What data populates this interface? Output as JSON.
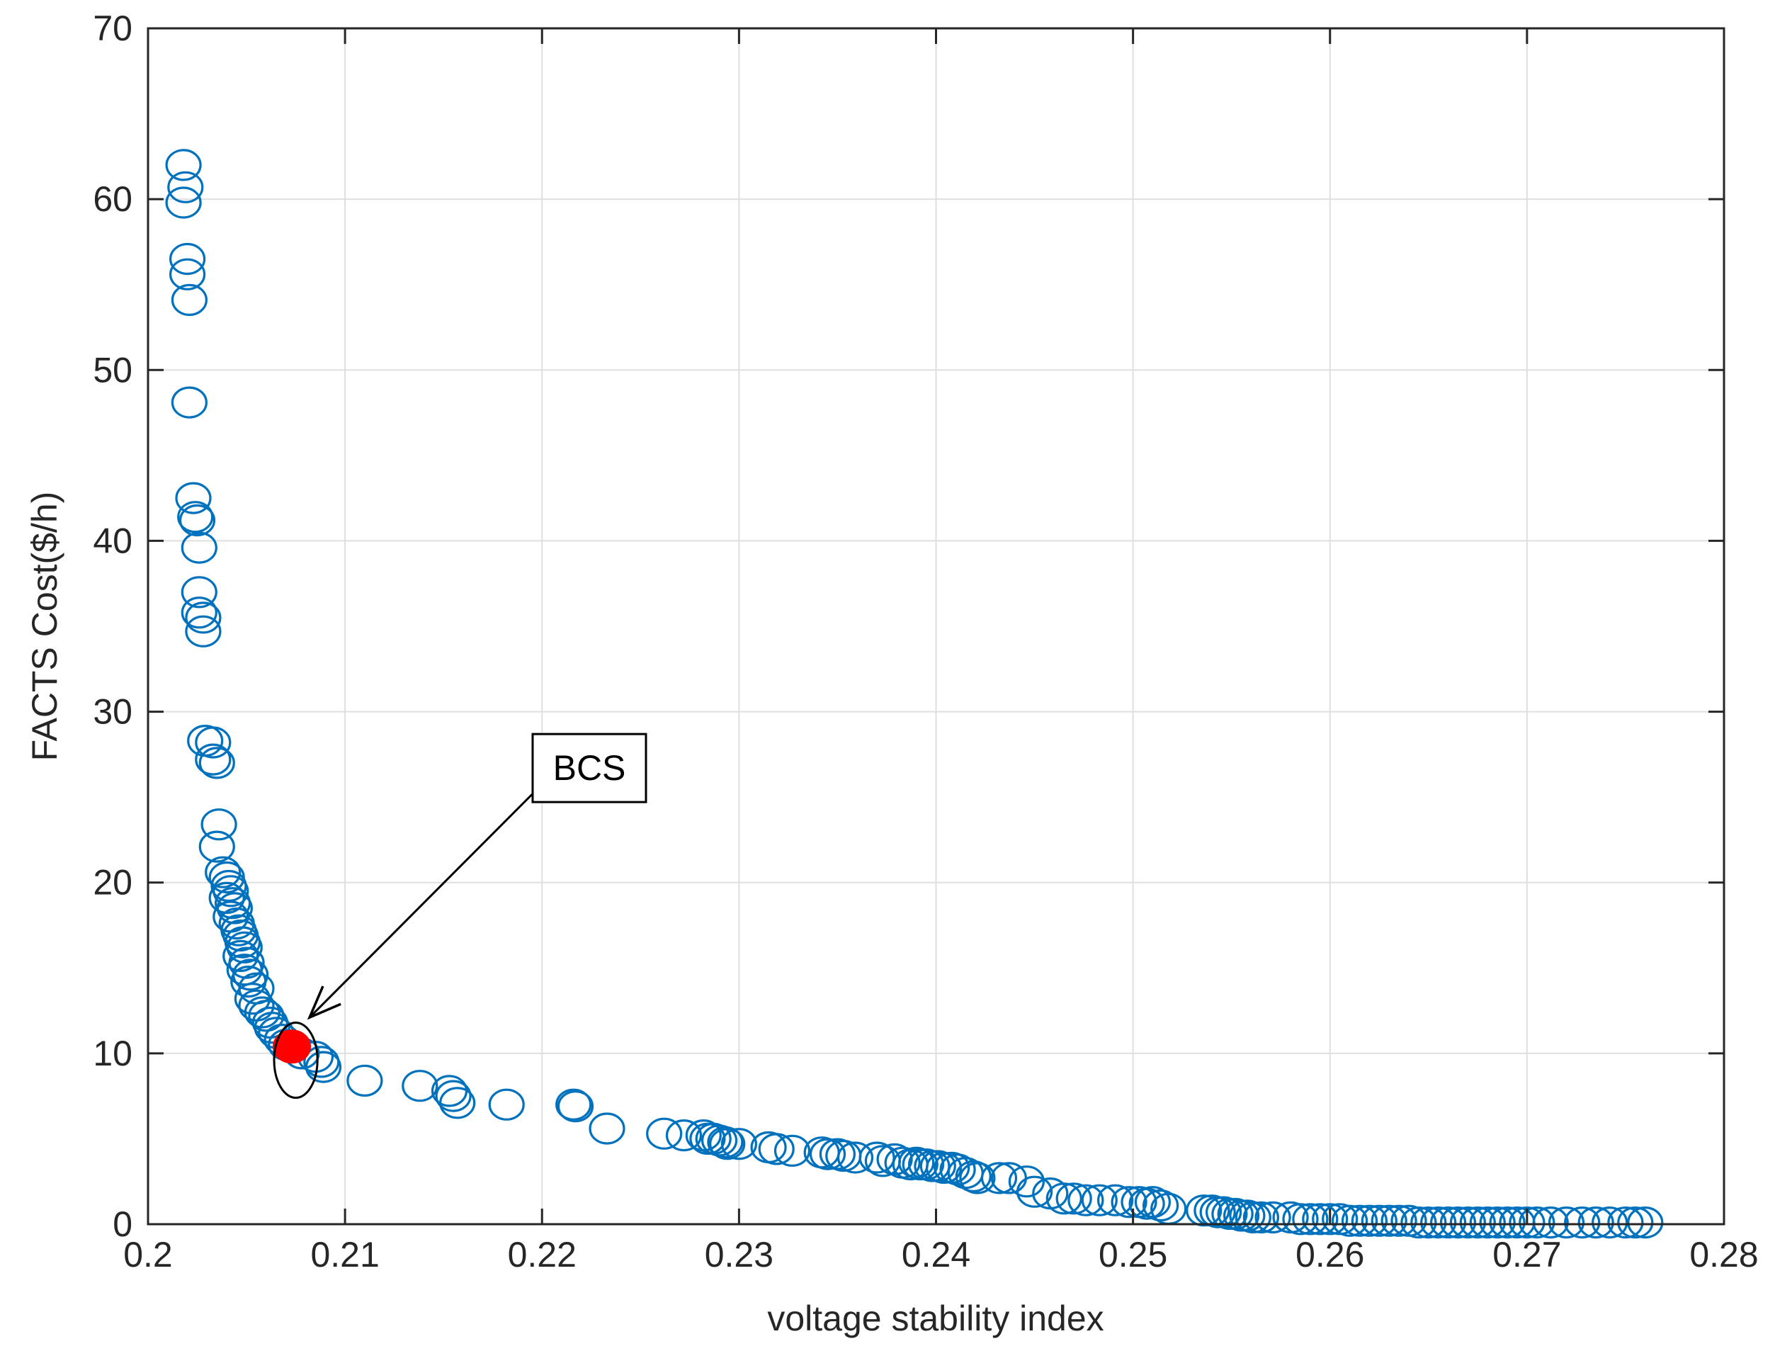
{
  "chart_data": {
    "type": "scatter",
    "title": "",
    "xlabel": "voltage stability index",
    "ylabel": "FACTS Cost($/h)",
    "xlim": [
      0.2,
      0.28
    ],
    "ylim": [
      0,
      70
    ],
    "x_ticks": [
      0.2,
      0.21,
      0.22,
      0.23,
      0.24,
      0.25,
      0.26,
      0.27,
      0.28
    ],
    "x_tick_labels": [
      "0.2",
      "0.21",
      "0.22",
      "0.23",
      "0.24",
      "0.25",
      "0.26",
      "0.27",
      "0.28"
    ],
    "y_ticks": [
      0,
      10,
      20,
      30,
      40,
      50,
      60,
      70
    ],
    "y_tick_labels": [
      "0",
      "10",
      "20",
      "30",
      "40",
      "50",
      "60",
      "70"
    ],
    "grid": true,
    "colors": {
      "marker": "#0072BD",
      "highlight": "#ff0000",
      "axis": "#262626",
      "grid": "#dfdfdf"
    },
    "series": [
      {
        "marker": "open-circle",
        "points": [
          [
            0.2018,
            62.0
          ],
          [
            0.2019,
            60.7
          ],
          [
            0.2018,
            59.8
          ],
          [
            0.202,
            56.5
          ],
          [
            0.202,
            55.6
          ],
          [
            0.2021,
            54.1
          ],
          [
            0.2021,
            48.1
          ],
          [
            0.2023,
            42.5
          ],
          [
            0.2024,
            41.4
          ],
          [
            0.2025,
            41.2
          ],
          [
            0.2026,
            39.6
          ],
          [
            0.2026,
            37.0
          ],
          [
            0.2026,
            35.8
          ],
          [
            0.2028,
            35.5
          ],
          [
            0.2028,
            34.7
          ],
          [
            0.2029,
            28.3
          ],
          [
            0.2033,
            28.2
          ],
          [
            0.2033,
            27.2
          ],
          [
            0.2035,
            27.0
          ],
          [
            0.2036,
            23.4
          ],
          [
            0.2035,
            22.1
          ],
          [
            0.2038,
            20.6
          ],
          [
            0.204,
            20.3
          ],
          [
            0.2041,
            19.8
          ],
          [
            0.2042,
            19.5
          ],
          [
            0.204,
            19.1
          ],
          [
            0.2043,
            18.8
          ],
          [
            0.2044,
            18.5
          ],
          [
            0.2042,
            18.0
          ],
          [
            0.2045,
            17.6
          ],
          [
            0.2046,
            17.2
          ],
          [
            0.2047,
            16.9
          ],
          [
            0.2048,
            16.5
          ],
          [
            0.2049,
            16.2
          ],
          [
            0.2047,
            15.7
          ],
          [
            0.205,
            15.3
          ],
          [
            0.2049,
            14.9
          ],
          [
            0.2052,
            14.6
          ],
          [
            0.2051,
            14.2
          ],
          [
            0.2055,
            13.8
          ],
          [
            0.2053,
            13.2
          ],
          [
            0.2055,
            12.8
          ],
          [
            0.2058,
            12.4
          ],
          [
            0.206,
            12.2
          ],
          [
            0.2062,
            11.8
          ],
          [
            0.2063,
            11.5
          ],
          [
            0.2065,
            11.2
          ],
          [
            0.2068,
            10.8
          ],
          [
            0.207,
            10.5
          ],
          [
            0.2078,
            10.0
          ],
          [
            0.2085,
            9.8
          ],
          [
            0.2088,
            9.5
          ],
          [
            0.2089,
            9.2
          ],
          [
            0.211,
            8.4
          ],
          [
            0.2138,
            8.1
          ],
          [
            0.2153,
            7.8
          ],
          [
            0.2155,
            7.5
          ],
          [
            0.2157,
            7.1
          ],
          [
            0.2182,
            7.0
          ],
          [
            0.2216,
            7.0
          ],
          [
            0.2217,
            6.9
          ],
          [
            0.2233,
            5.6
          ],
          [
            0.2262,
            5.3
          ],
          [
            0.2272,
            5.2
          ],
          [
            0.2282,
            5.2
          ],
          [
            0.2284,
            5.0
          ],
          [
            0.2287,
            5.0
          ],
          [
            0.229,
            4.9
          ],
          [
            0.2293,
            4.8
          ],
          [
            0.2294,
            4.7
          ],
          [
            0.23,
            4.7
          ],
          [
            0.2315,
            4.5
          ],
          [
            0.2319,
            4.4
          ],
          [
            0.2327,
            4.3
          ],
          [
            0.2342,
            4.2
          ],
          [
            0.2345,
            4.1
          ],
          [
            0.235,
            4.1
          ],
          [
            0.2353,
            4.0
          ],
          [
            0.2359,
            3.9
          ],
          [
            0.237,
            3.9
          ],
          [
            0.2373,
            3.7
          ],
          [
            0.2379,
            3.8
          ],
          [
            0.2383,
            3.6
          ],
          [
            0.2387,
            3.5
          ],
          [
            0.239,
            3.6
          ],
          [
            0.2392,
            3.5
          ],
          [
            0.2395,
            3.5
          ],
          [
            0.2398,
            3.4
          ],
          [
            0.2401,
            3.4
          ],
          [
            0.2404,
            3.3
          ],
          [
            0.2408,
            3.3
          ],
          [
            0.2411,
            3.2
          ],
          [
            0.2415,
            3.0
          ],
          [
            0.2419,
            2.8
          ],
          [
            0.2421,
            2.7
          ],
          [
            0.2432,
            2.7
          ],
          [
            0.2437,
            2.7
          ],
          [
            0.2446,
            2.5
          ],
          [
            0.245,
            1.9
          ],
          [
            0.2458,
            1.8
          ],
          [
            0.2465,
            1.5
          ],
          [
            0.247,
            1.5
          ],
          [
            0.2476,
            1.4
          ],
          [
            0.2483,
            1.4
          ],
          [
            0.2491,
            1.4
          ],
          [
            0.2498,
            1.3
          ],
          [
            0.2503,
            1.3
          ],
          [
            0.2507,
            1.2
          ],
          [
            0.251,
            1.3
          ],
          [
            0.2514,
            1.1
          ],
          [
            0.2518,
            0.9
          ],
          [
            0.2536,
            0.8
          ],
          [
            0.254,
            0.8
          ],
          [
            0.2543,
            0.7
          ],
          [
            0.2546,
            0.7
          ],
          [
            0.2549,
            0.6
          ],
          [
            0.2552,
            0.6
          ],
          [
            0.2555,
            0.5
          ],
          [
            0.2558,
            0.5
          ],
          [
            0.2561,
            0.4
          ],
          [
            0.2565,
            0.4
          ],
          [
            0.2571,
            0.4
          ],
          [
            0.258,
            0.4
          ],
          [
            0.2585,
            0.3
          ],
          [
            0.259,
            0.3
          ],
          [
            0.2595,
            0.3
          ],
          [
            0.26,
            0.3
          ],
          [
            0.2605,
            0.3
          ],
          [
            0.261,
            0.2
          ],
          [
            0.2615,
            0.2
          ],
          [
            0.262,
            0.2
          ],
          [
            0.2625,
            0.2
          ],
          [
            0.263,
            0.2
          ],
          [
            0.2635,
            0.2
          ],
          [
            0.264,
            0.2
          ],
          [
            0.2645,
            0.1
          ],
          [
            0.265,
            0.1
          ],
          [
            0.2655,
            0.1
          ],
          [
            0.266,
            0.1
          ],
          [
            0.2665,
            0.1
          ],
          [
            0.267,
            0.1
          ],
          [
            0.2675,
            0.1
          ],
          [
            0.268,
            0.1
          ],
          [
            0.2685,
            0.1
          ],
          [
            0.269,
            0.1
          ],
          [
            0.2695,
            0.1
          ],
          [
            0.27,
            0.1
          ],
          [
            0.2705,
            0.1
          ],
          [
            0.2712,
            0.1
          ],
          [
            0.272,
            0.1
          ],
          [
            0.2728,
            0.1
          ],
          [
            0.2735,
            0.1
          ],
          [
            0.2742,
            0.1
          ],
          [
            0.275,
            0.1
          ],
          [
            0.2755,
            0.1
          ],
          [
            0.276,
            0.1
          ]
        ]
      }
    ],
    "highlight_point": {
      "x": 0.2073,
      "y": 10.4
    },
    "annotation": {
      "label": "BCS",
      "box_at": [
        0.2224,
        26.7
      ],
      "arrow_from": [
        0.2197,
        25.4
      ],
      "arrow_to": [
        0.2082,
        12.1
      ],
      "ellipse_center": [
        0.2075,
        9.6
      ],
      "ellipse_radii": [
        0.0011,
        2.2
      ]
    }
  }
}
